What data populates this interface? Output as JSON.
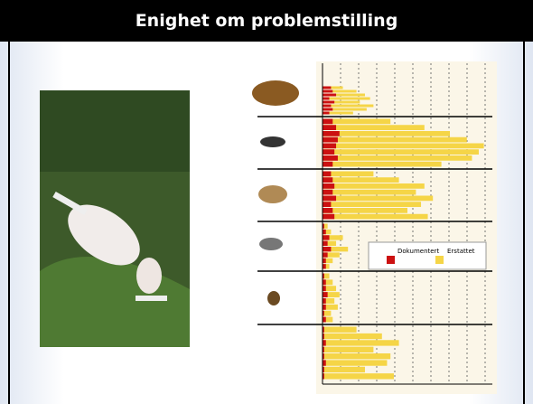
{
  "header": {
    "title": "Enighet om problemstilling"
  },
  "chart_data": {
    "type": "bar",
    "orientation": "horizontal",
    "categories": [
      null,
      null,
      null,
      null,
      null,
      null,
      null,
      null,
      null,
      null,
      null,
      null,
      null,
      null,
      null,
      null,
      null,
      null,
      null,
      null,
      null,
      null,
      null,
      null,
      null,
      null,
      null,
      null,
      null,
      null,
      null,
      null,
      null,
      null,
      null,
      null,
      null,
      null,
      null,
      null,
      null,
      null,
      null,
      null,
      null,
      null,
      null,
      null
    ],
    "xlim": [
      0,
      100
    ],
    "series": [
      {
        "name": "Erstattet",
        "color": "#f5d547",
        "values": [
          12,
          20,
          25,
          28,
          22,
          30,
          26,
          18,
          40,
          60,
          75,
          85,
          95,
          92,
          88,
          70,
          30,
          45,
          60,
          55,
          65,
          58,
          50,
          62,
          3,
          5,
          12,
          8,
          15,
          10,
          6,
          4,
          4,
          6,
          8,
          10,
          7,
          9,
          5,
          6,
          20,
          35,
          45,
          30,
          40,
          38,
          25,
          42
        ]
      },
      {
        "name": "Dokumentert",
        "color": "#cc1111",
        "values": [
          5,
          6,
          8,
          4,
          7,
          5,
          6,
          4,
          6,
          8,
          10,
          9,
          8,
          7,
          9,
          6,
          5,
          6,
          7,
          6,
          8,
          5,
          6,
          7,
          1,
          2,
          4,
          3,
          5,
          3,
          2,
          2,
          1,
          2,
          2,
          3,
          2,
          2,
          1,
          2,
          1,
          1,
          2,
          1,
          1,
          2,
          1,
          1
        ]
      }
    ],
    "legend": "right"
  }
}
